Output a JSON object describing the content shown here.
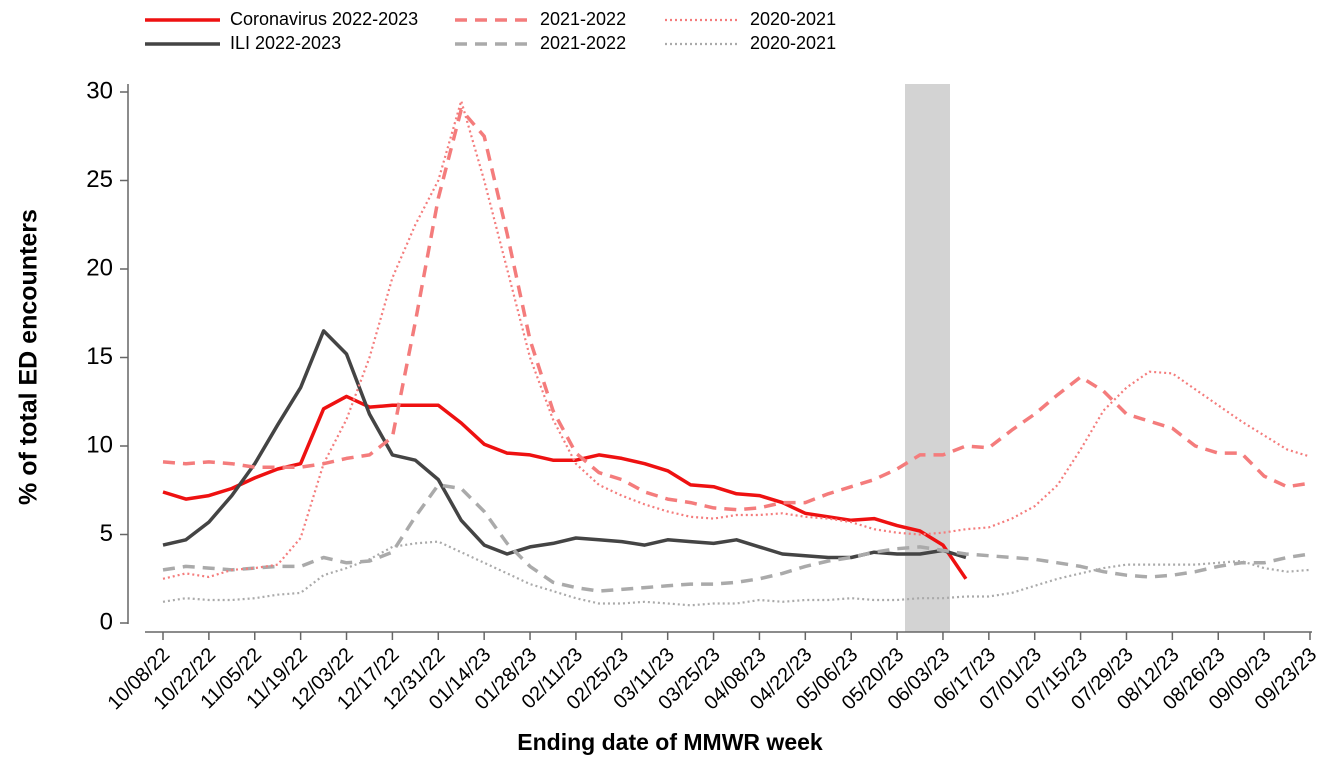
{
  "chart_data": {
    "type": "line",
    "ylabel": "% of total ED encounters",
    "xlabel": "Ending date of MMWR week",
    "categories": [
      "10/08/22",
      null,
      "10/22/22",
      null,
      "11/05/22",
      null,
      "11/19/22",
      null,
      "12/03/22",
      null,
      "12/17/22",
      null,
      "12/31/22",
      null,
      "01/14/23",
      null,
      "01/28/23",
      null,
      "02/11/23",
      null,
      "02/25/23",
      null,
      "03/11/23",
      null,
      "03/25/23",
      null,
      "04/08/23",
      null,
      "04/22/23",
      null,
      "05/06/23",
      null,
      "05/20/23",
      null,
      "06/03/23",
      null,
      "06/17/23",
      null,
      "07/01/23",
      null,
      "07/15/23",
      null,
      "07/29/23",
      null,
      "08/12/23",
      null,
      "08/26/23",
      null,
      "09/09/23",
      null,
      "09/23/23"
    ],
    "ylim": [
      0,
      30
    ],
    "yticks": [
      0,
      5,
      10,
      15,
      20,
      25,
      30
    ],
    "series": [
      {
        "name": "Coronavirus 2022-2023",
        "color": "#ee1111",
        "dash": "solid",
        "values": [
          7.4,
          7.0,
          7.2,
          7.6,
          8.2,
          8.7,
          9.0,
          12.1,
          12.8,
          12.2,
          12.3,
          12.3,
          12.3,
          11.3,
          10.1,
          9.6,
          9.5,
          9.2,
          9.2,
          9.5,
          9.3,
          9.0,
          8.6,
          7.8,
          7.7,
          7.3,
          7.2,
          6.8,
          6.2,
          6.0,
          5.8,
          5.9,
          5.5,
          5.2,
          4.4,
          2.5,
          null,
          null,
          null,
          null,
          null,
          null,
          null,
          null,
          null,
          null,
          null,
          null,
          null,
          null,
          null
        ]
      },
      {
        "name": "ILI 2022-2023",
        "color": "#444444",
        "dash": "solid",
        "values": [
          4.4,
          4.7,
          5.7,
          7.2,
          9.0,
          11.2,
          13.3,
          16.5,
          15.2,
          11.8,
          9.5,
          9.2,
          8.1,
          5.8,
          4.4,
          3.9,
          4.3,
          4.5,
          4.8,
          4.7,
          4.6,
          4.4,
          4.7,
          4.6,
          4.5,
          4.7,
          4.3,
          3.9,
          3.8,
          3.7,
          3.7,
          4.0,
          3.9,
          3.9,
          4.1,
          3.7,
          null,
          null,
          null,
          null,
          null,
          null,
          null,
          null,
          null,
          null,
          null,
          null,
          null,
          null,
          null
        ]
      },
      {
        "name": "2021-2022",
        "color": "#f47c7c",
        "dash": "dashed",
        "values": [
          9.1,
          9.0,
          9.1,
          9.0,
          8.8,
          8.8,
          8.8,
          9.0,
          9.3,
          9.5,
          10.5,
          17,
          24,
          29,
          27.5,
          22,
          16,
          12,
          9.6,
          8.5,
          8.1,
          7.4,
          7.0,
          6.8,
          6.5,
          6.4,
          6.5,
          6.8,
          6.8,
          7.3,
          7.7,
          8.1,
          8.7,
          9.5,
          9.5,
          10.0,
          9.9,
          10.9,
          11.8,
          12.9,
          13.9,
          13.1,
          11.8,
          11.4,
          11.0,
          10.0,
          9.6,
          9.6,
          8.3,
          7.7,
          7.9
        ]
      },
      {
        "name": "2021-2022",
        "color": "#aaaaaa",
        "dash": "dashed",
        "values": [
          3.0,
          3.2,
          3.1,
          3.0,
          3.1,
          3.2,
          3.2,
          3.7,
          3.4,
          3.5,
          4.0,
          6.0,
          7.8,
          7.6,
          6.3,
          4.5,
          3.2,
          2.3,
          2.0,
          1.8,
          1.9,
          2.0,
          2.1,
          2.2,
          2.2,
          2.3,
          2.5,
          2.8,
          3.2,
          3.5,
          3.7,
          4.0,
          4.2,
          4.3,
          4.1,
          3.9,
          3.8,
          3.7,
          3.6,
          3.4,
          3.2,
          2.9,
          2.7,
          2.6,
          2.7,
          2.9,
          3.2,
          3.4,
          3.4,
          3.7,
          3.9
        ]
      },
      {
        "name": "2020-2021",
        "color": "#f47c7c",
        "dash": "dotted",
        "values": [
          2.5,
          2.8,
          2.6,
          3.0,
          3.1,
          3.3,
          4.8,
          9.0,
          11.5,
          15,
          19.5,
          22.5,
          25,
          29.5,
          25,
          20,
          15,
          11.5,
          9.0,
          7.8,
          7.2,
          6.7,
          6.3,
          6.0,
          5.9,
          6.1,
          6.1,
          6.2,
          6.0,
          5.9,
          5.7,
          5.3,
          5.1,
          5.0,
          5.1,
          5.3,
          5.4,
          5.9,
          6.6,
          7.8,
          9.8,
          12.0,
          13.3,
          14.2,
          14.1,
          13.2,
          12.3,
          11.4,
          10.6,
          9.8,
          9.4
        ]
      },
      {
        "name": "2020-2021",
        "color": "#aaaaaa",
        "dash": "dotted",
        "values": [
          1.2,
          1.4,
          1.3,
          1.3,
          1.4,
          1.6,
          1.7,
          2.7,
          3.1,
          3.6,
          4.3,
          4.5,
          4.6,
          4.0,
          3.4,
          2.8,
          2.2,
          1.8,
          1.4,
          1.1,
          1.1,
          1.2,
          1.1,
          1.0,
          1.1,
          1.1,
          1.3,
          1.2,
          1.3,
          1.3,
          1.4,
          1.3,
          1.3,
          1.4,
          1.4,
          1.5,
          1.5,
          1.7,
          2.1,
          2.5,
          2.8,
          3.1,
          3.3,
          3.3,
          3.3,
          3.3,
          3.4,
          3.5,
          3.1,
          2.9,
          3.0
        ]
      }
    ]
  }
}
